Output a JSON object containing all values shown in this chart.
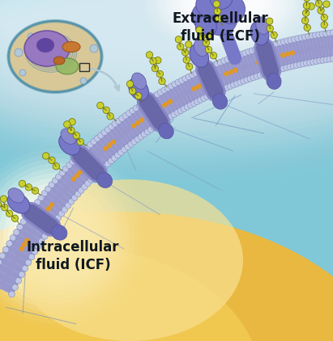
{
  "label_ecf": "Extracellular\nfluid (ECF)",
  "label_icf": "Intracellular\nfluid (ICF)",
  "bg_teal": "#78c8d8",
  "bg_white": "#e8f4f8",
  "bg_warm": "#e8b84a",
  "bg_warm2": "#f0d890",
  "membrane_blue": "#8890cc",
  "membrane_light": "#b0b8e0",
  "membrane_dark": "#6870b0",
  "protein_mid": "#7878c8",
  "protein_dark": "#5858a8",
  "protein_light": "#9090d0",
  "head_color": "#c8cce8",
  "head_edge": "#8888b8",
  "cholesterol": "#e8a020",
  "glyco_green": "#b8d030",
  "glyco_edge": "#707010",
  "glyco_stem": "#808818",
  "figsize": [
    4.11,
    4.22
  ],
  "dpi": 100
}
